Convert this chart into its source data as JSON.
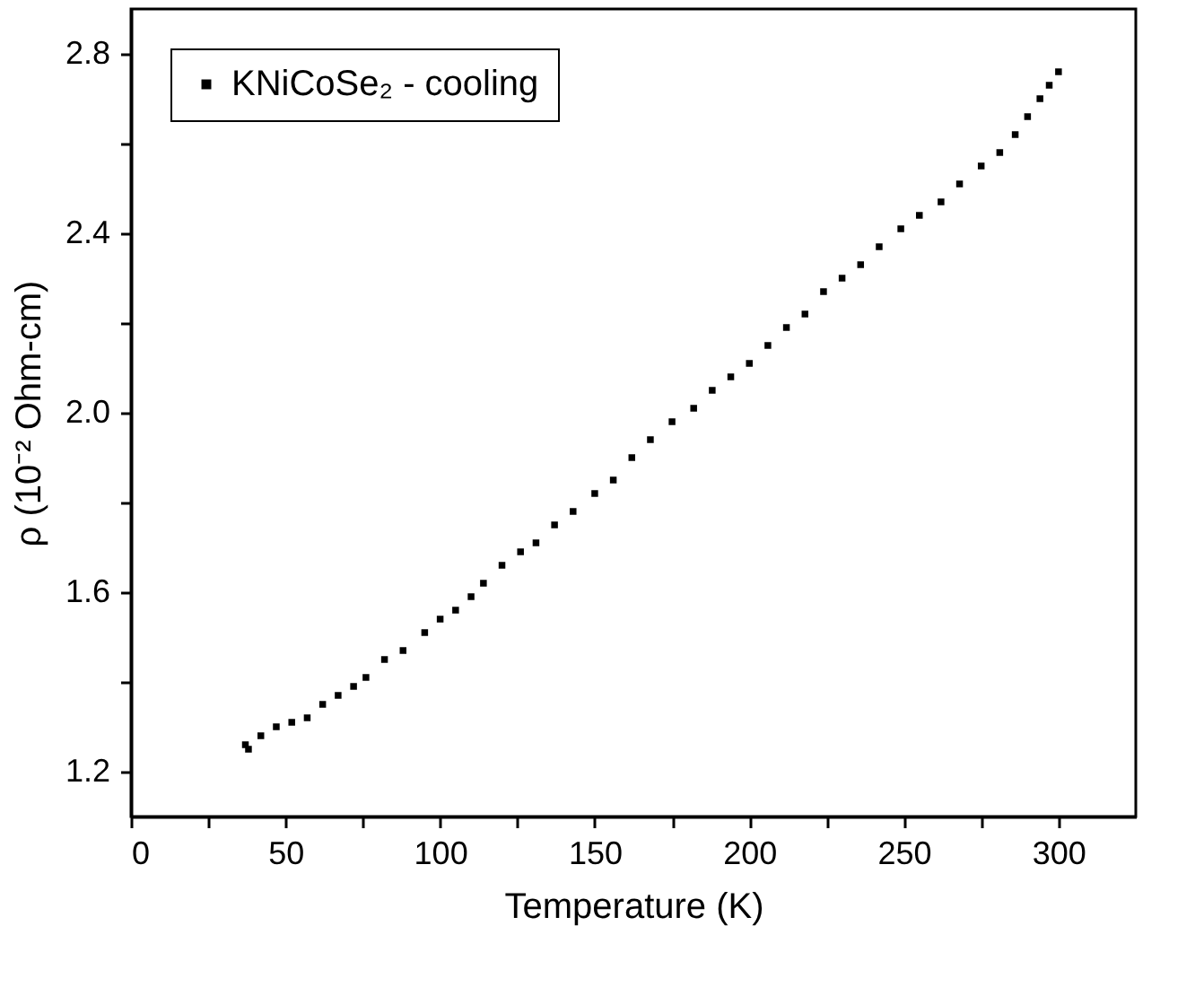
{
  "chart_data": {
    "type": "scatter",
    "xlabel": "Temperature (K)",
    "ylabel": "ρ (10⁻² Ohm-cm)",
    "xlim": [
      0,
      325
    ],
    "ylim": [
      1.1,
      2.9
    ],
    "xticks": [
      0,
      {
        "value": 25,
        "label": null
      },
      50,
      {
        "value": 75,
        "label": null
      },
      100,
      {
        "value": 125,
        "label": null
      },
      150,
      {
        "value": 175,
        "label": null
      },
      200,
      {
        "value": 225,
        "label": null
      },
      250,
      {
        "value": 275,
        "label": null
      },
      300
    ],
    "yticks": [
      {
        "value": 1.2,
        "label": "1.2"
      },
      {
        "value": 1.4,
        "label": null
      },
      {
        "value": 1.6,
        "label": "1.6"
      },
      {
        "value": 1.8,
        "label": null
      },
      {
        "value": 2.0,
        "label": "2.0"
      },
      {
        "value": 2.2,
        "label": null
      },
      {
        "value": 2.4,
        "label": "2.4"
      },
      {
        "value": 2.6,
        "label": null
      },
      {
        "value": 2.8,
        "label": "2.8"
      }
    ],
    "grid": false,
    "legend": "top left",
    "marker": "square",
    "series": [
      {
        "name": "KNiCoSe₂ - cooling",
        "color": "#000000",
        "x": [
          37,
          38,
          42,
          47,
          52,
          57,
          62,
          67,
          72,
          76,
          82,
          88,
          95,
          100,
          105,
          110,
          114,
          120,
          126,
          131,
          137,
          143,
          150,
          156,
          162,
          168,
          175,
          182,
          188,
          194,
          200,
          206,
          212,
          218,
          224,
          230,
          236,
          242,
          249,
          255,
          262,
          268,
          275,
          281,
          286,
          290,
          294,
          297,
          300
        ],
        "values": [
          1.26,
          1.25,
          1.28,
          1.3,
          1.31,
          1.32,
          1.35,
          1.37,
          1.39,
          1.41,
          1.45,
          1.47,
          1.51,
          1.54,
          1.56,
          1.59,
          1.62,
          1.66,
          1.69,
          1.71,
          1.75,
          1.78,
          1.82,
          1.85,
          1.9,
          1.94,
          1.98,
          2.01,
          2.05,
          2.08,
          2.11,
          2.15,
          2.19,
          2.22,
          2.27,
          2.3,
          2.33,
          2.37,
          2.41,
          2.44,
          2.47,
          2.51,
          2.55,
          2.58,
          2.62,
          2.66,
          2.7,
          2.73,
          2.76
        ]
      }
    ]
  }
}
